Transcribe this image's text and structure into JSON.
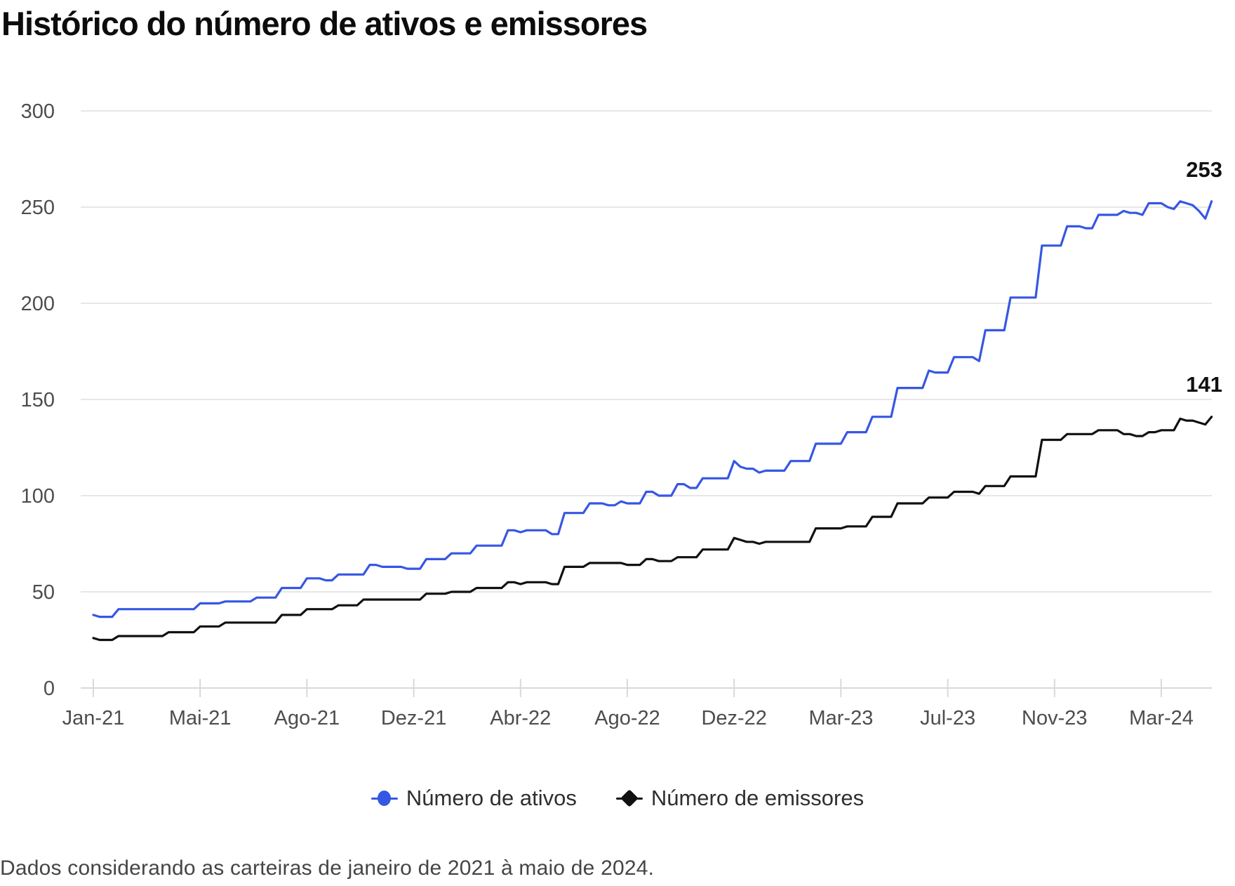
{
  "title": "Histórico do número de ativos e emissores",
  "footnote": "Dados considerando as carteiras de janeiro de 2021 à maio de 2024.",
  "colors": {
    "ativos": "#3657e3",
    "emissores": "#111111",
    "grid": "#e7e7e7",
    "baseline": "#d9d9d9",
    "tick": "#d9d9d9",
    "axis_text": "#4d4d4d",
    "end_label_text": "#111111"
  },
  "end_labels": {
    "ativos": "253",
    "emissores": "141"
  },
  "legend": [
    {
      "label": "Número de ativos",
      "marker": "circle",
      "color": "#3657e3"
    },
    {
      "label": "Número de emissores",
      "marker": "diamond",
      "color": "#111111"
    }
  ],
  "chart_data": {
    "type": "line",
    "line_style": "step-weekly-snapshots",
    "title": "Histórico do número de ativos e emissores",
    "xlabel": "",
    "ylabel": "",
    "ylim": [
      0,
      300
    ],
    "y_ticks": [
      0,
      50,
      100,
      150,
      200,
      250,
      300
    ],
    "grid": "horizontal-only",
    "legend_position": "bottom-center",
    "x_tick_labels": [
      "Jan-21",
      "Mai-21",
      "Ago-21",
      "Dez-21",
      "Abr-22",
      "Ago-22",
      "Dez-22",
      "Mar-23",
      "Jul-23",
      "Nov-23",
      "Mar-24"
    ],
    "x_tick_indices": [
      0,
      17,
      34,
      51,
      68,
      85,
      102,
      119,
      136,
      153,
      170
    ],
    "series": [
      {
        "name": "Número de ativos",
        "color": "#3657e3",
        "final_value": 253,
        "values": [
          38,
          37,
          37,
          37,
          41,
          41,
          41,
          41,
          41,
          41,
          41,
          41,
          41,
          41,
          41,
          41,
          41,
          44,
          44,
          44,
          44,
          45,
          45,
          45,
          45,
          45,
          47,
          47,
          47,
          47,
          52,
          52,
          52,
          52,
          57,
          57,
          57,
          56,
          56,
          59,
          59,
          59,
          59,
          59,
          64,
          64,
          63,
          63,
          63,
          63,
          62,
          62,
          62,
          67,
          67,
          67,
          67,
          70,
          70,
          70,
          70,
          74,
          74,
          74,
          74,
          74,
          82,
          82,
          81,
          82,
          82,
          82,
          82,
          80,
          80,
          91,
          91,
          91,
          91,
          96,
          96,
          96,
          95,
          95,
          97,
          96,
          96,
          96,
          102,
          102,
          100,
          100,
          100,
          106,
          106,
          104,
          104,
          109,
          109,
          109,
          109,
          109,
          118,
          115,
          114,
          114,
          112,
          113,
          113,
          113,
          113,
          118,
          118,
          118,
          118,
          127,
          127,
          127,
          127,
          127,
          133,
          133,
          133,
          133,
          141,
          141,
          141,
          141,
          156,
          156,
          156,
          156,
          156,
          165,
          164,
          164,
          164,
          172,
          172,
          172,
          172,
          170,
          186,
          186,
          186,
          186,
          203,
          203,
          203,
          203,
          203,
          230,
          230,
          230,
          230,
          240,
          240,
          240,
          239,
          239,
          246,
          246,
          246,
          246,
          248,
          247,
          247,
          246,
          252,
          252,
          252,
          250,
          249,
          253,
          252,
          251,
          248,
          244,
          253
        ]
      },
      {
        "name": "Número de emissores",
        "color": "#111111",
        "final_value": 141,
        "values": [
          26,
          25,
          25,
          25,
          27,
          27,
          27,
          27,
          27,
          27,
          27,
          27,
          29,
          29,
          29,
          29,
          29,
          32,
          32,
          32,
          32,
          34,
          34,
          34,
          34,
          34,
          34,
          34,
          34,
          34,
          38,
          38,
          38,
          38,
          41,
          41,
          41,
          41,
          41,
          43,
          43,
          43,
          43,
          46,
          46,
          46,
          46,
          46,
          46,
          46,
          46,
          46,
          46,
          49,
          49,
          49,
          49,
          50,
          50,
          50,
          50,
          52,
          52,
          52,
          52,
          52,
          55,
          55,
          54,
          55,
          55,
          55,
          55,
          54,
          54,
          63,
          63,
          63,
          63,
          65,
          65,
          65,
          65,
          65,
          65,
          64,
          64,
          64,
          67,
          67,
          66,
          66,
          66,
          68,
          68,
          68,
          68,
          72,
          72,
          72,
          72,
          72,
          78,
          77,
          76,
          76,
          75,
          76,
          76,
          76,
          76,
          76,
          76,
          76,
          76,
          83,
          83,
          83,
          83,
          83,
          84,
          84,
          84,
          84,
          89,
          89,
          89,
          89,
          96,
          96,
          96,
          96,
          96,
          99,
          99,
          99,
          99,
          102,
          102,
          102,
          102,
          101,
          105,
          105,
          105,
          105,
          110,
          110,
          110,
          110,
          110,
          129,
          129,
          129,
          129,
          132,
          132,
          132,
          132,
          132,
          134,
          134,
          134,
          134,
          132,
          132,
          131,
          131,
          133,
          133,
          134,
          134,
          134,
          140,
          139,
          139,
          138,
          137,
          141
        ]
      }
    ]
  }
}
